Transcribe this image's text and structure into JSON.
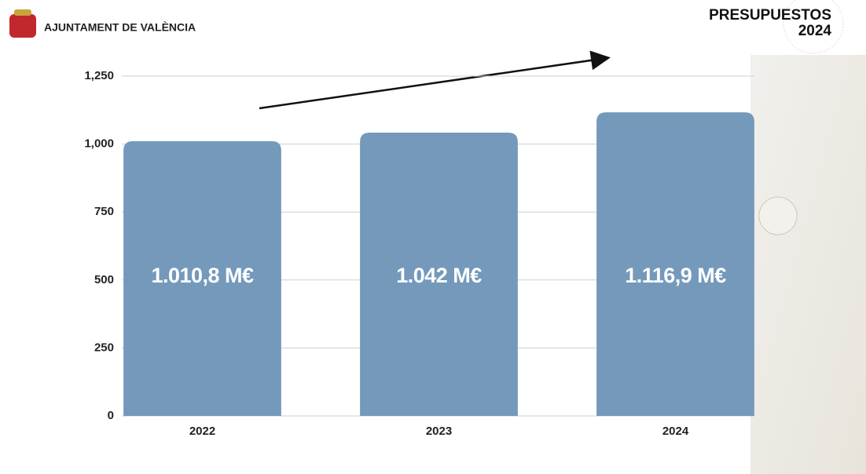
{
  "header": {
    "organization": "AJUNTAMENT DE VALÈNCIA",
    "badge_line1": "PRESUPUESTOS",
    "badge_line2": "2024"
  },
  "chart_data": {
    "type": "bar",
    "categories": [
      "2022",
      "2023",
      "2024"
    ],
    "values": [
      1010.8,
      1042,
      1116.9
    ],
    "value_labels": [
      "1.010,8 M€",
      "1.042 M€",
      "1.116,9 M€"
    ],
    "color": "#7499bb",
    "ylim": [
      0,
      1250
    ],
    "yticks": [
      0,
      250,
      500,
      750,
      {
        "value": 1000,
        "label": "1,000"
      },
      {
        "value": 1250,
        "label": "1,250"
      }
    ],
    "grid": true
  }
}
